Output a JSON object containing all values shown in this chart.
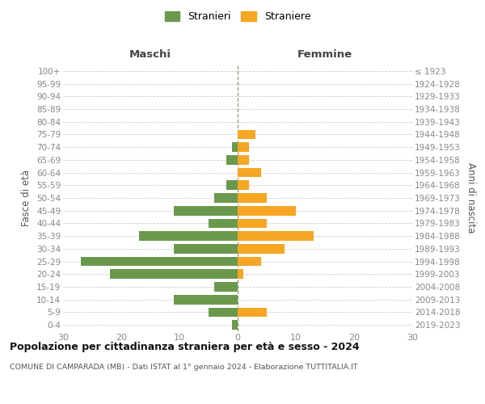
{
  "age_groups": [
    "0-4",
    "5-9",
    "10-14",
    "15-19",
    "20-24",
    "25-29",
    "30-34",
    "35-39",
    "40-44",
    "45-49",
    "50-54",
    "55-59",
    "60-64",
    "65-69",
    "70-74",
    "75-79",
    "80-84",
    "85-89",
    "90-94",
    "95-99",
    "100+"
  ],
  "birth_years": [
    "2019-2023",
    "2014-2018",
    "2009-2013",
    "2004-2008",
    "1999-2003",
    "1994-1998",
    "1989-1993",
    "1984-1988",
    "1979-1983",
    "1974-1978",
    "1969-1973",
    "1964-1968",
    "1959-1963",
    "1954-1958",
    "1949-1953",
    "1944-1948",
    "1939-1943",
    "1934-1938",
    "1929-1933",
    "1924-1928",
    "≤ 1923"
  ],
  "males": [
    1,
    5,
    11,
    4,
    22,
    27,
    11,
    17,
    5,
    11,
    4,
    2,
    0,
    2,
    1,
    0,
    0,
    0,
    0,
    0,
    0
  ],
  "females": [
    0,
    5,
    0,
    0,
    1,
    4,
    8,
    13,
    5,
    10,
    5,
    2,
    4,
    2,
    2,
    3,
    0,
    0,
    0,
    0,
    0
  ],
  "male_color": "#6a994e",
  "female_color": "#f5a623",
  "title": "Popolazione per cittadinanza straniera per età e sesso - 2024",
  "subtitle": "COMUNE DI CAMPARADA (MB) - Dati ISTAT al 1° gennaio 2024 - Elaborazione TUTTITALIA.IT",
  "xlabel_left": "Maschi",
  "xlabel_right": "Femmine",
  "ylabel_left": "Fasce di età",
  "ylabel_right": "Anni di nascita",
  "legend_stranieri": "Stranieri",
  "legend_straniere": "Straniere",
  "xlim": 30,
  "bar_height": 0.75,
  "grid_color": "#cccccc",
  "tick_color": "#888888",
  "label_color": "#555555"
}
